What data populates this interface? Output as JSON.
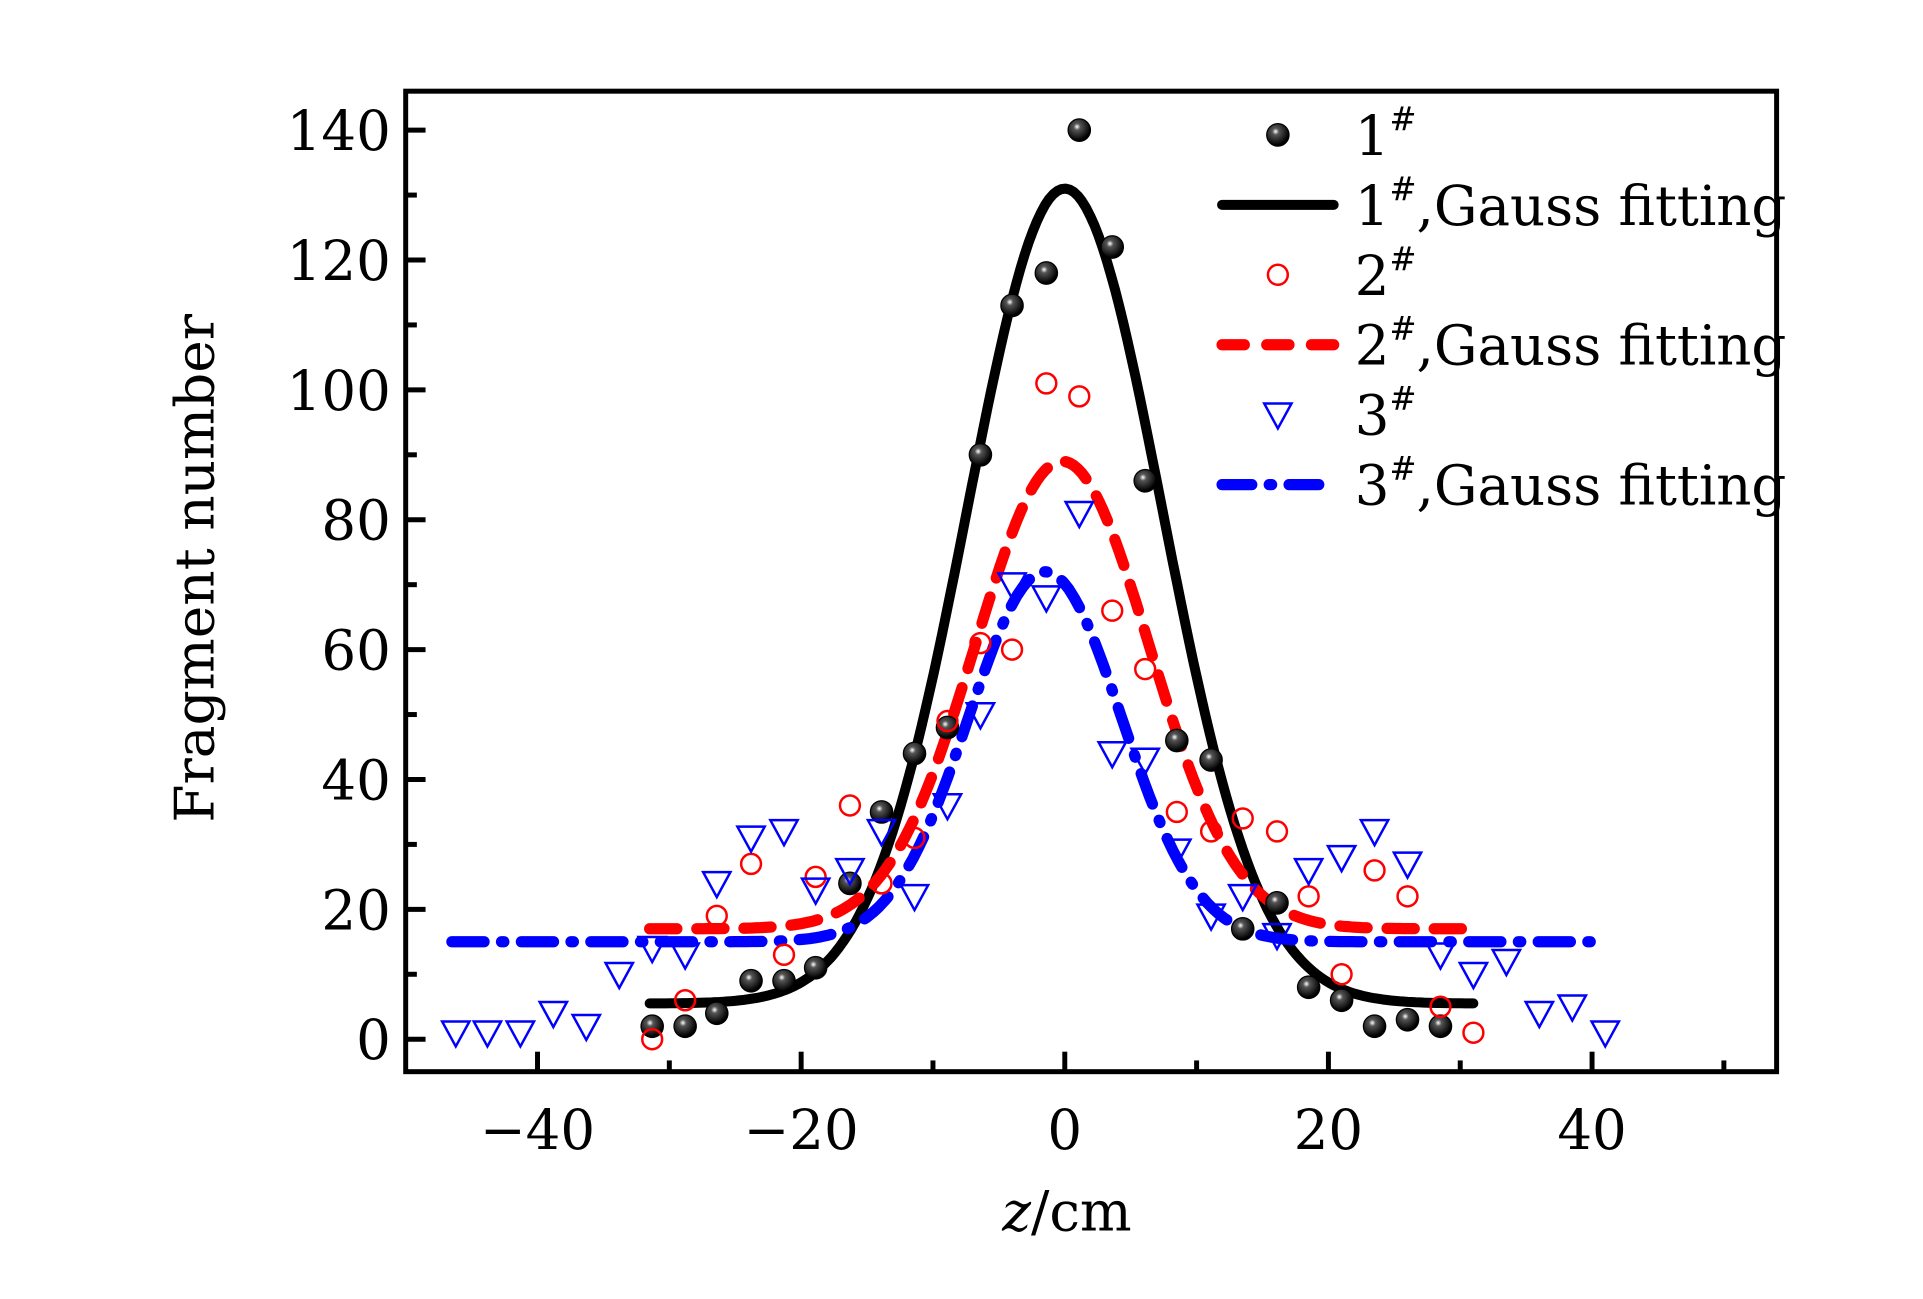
{
  "chart_data": {
    "type": "scatter",
    "title": "",
    "xlabel": "z/cm",
    "xlabel_italic_part": "z",
    "xlabel_rest": "/cm",
    "ylabel": "Fragment number",
    "xlim": [
      -50,
      54
    ],
    "ylim": [
      -5,
      146
    ],
    "x_ticks": [
      -40,
      -20,
      0,
      20,
      40
    ],
    "x_tick_labels": [
      "−40",
      "−20",
      "0",
      "20",
      "40"
    ],
    "x_minor_ticks": [
      -30,
      -10,
      10,
      30,
      50
    ],
    "y_ticks": [
      0,
      20,
      40,
      60,
      80,
      100,
      120,
      140
    ],
    "y_tick_labels": [
      "0",
      "20",
      "40",
      "60",
      "80",
      "100",
      "120",
      "140"
    ],
    "y_minor_ticks": [
      10,
      30,
      50,
      70,
      90,
      110,
      130
    ],
    "grid": false,
    "legend_position": "top-right",
    "series": [
      {
        "name": "1#",
        "legend_main": "1",
        "legend_sup": "#",
        "kind": "scatter",
        "marker": "filled-sphere",
        "color": "#000000",
        "x": [
          -31.3,
          -28.8,
          -26.4,
          -23.8,
          -21.3,
          -18.9,
          -16.3,
          -13.9,
          -11.4,
          -8.9,
          -6.4,
          -4.0,
          -1.4,
          1.1,
          3.6,
          6.1,
          8.5,
          11.1,
          13.5,
          16.1,
          18.5,
          21.0,
          23.5,
          26.0,
          28.5
        ],
        "y": [
          2,
          2,
          4,
          9,
          9,
          11,
          24,
          35,
          44,
          48,
          90,
          113,
          118,
          140,
          122,
          86,
          46,
          43,
          17,
          21,
          8,
          6,
          2,
          3,
          2
        ]
      },
      {
        "name": "1#, Gauss fitting",
        "legend_main": "1",
        "legend_sup": "#",
        "legend_rest": ",Gauss fitting",
        "kind": "gauss",
        "line_style": "solid",
        "color": "#000000",
        "params": {
          "y0": 5.5,
          "A": 125.5,
          "xc": 0,
          "sigma": 7.4
        },
        "x_range": [
          -31.5,
          31
        ]
      },
      {
        "name": "2#",
        "legend_main": "2",
        "legend_sup": "#",
        "kind": "scatter",
        "marker": "open-circle",
        "color": "#ff0000",
        "x": [
          -31.3,
          -28.8,
          -26.4,
          -23.8,
          -21.3,
          -18.9,
          -16.3,
          -13.9,
          -11.4,
          -8.9,
          -6.4,
          -4.0,
          -1.4,
          1.1,
          3.6,
          6.1,
          8.5,
          11.1,
          13.5,
          16.1,
          18.5,
          21.0,
          23.5,
          26.0,
          28.5,
          31.0
        ],
        "y": [
          0,
          6,
          19,
          27,
          13,
          25,
          36,
          24,
          31,
          49,
          61,
          60,
          101,
          99,
          66,
          57,
          35,
          32,
          34,
          32,
          22,
          10,
          26,
          22,
          5,
          1
        ]
      },
      {
        "name": "2#, Gauss fitting",
        "legend_main": "2",
        "legend_sup": "#",
        "legend_rest": ",Gauss fitting",
        "kind": "gauss",
        "line_style": "dashed",
        "color": "#ff0000",
        "params": {
          "y0": 17,
          "A": 72,
          "xc": -0.2,
          "sigma": 6.6
        },
        "x_range": [
          -31.5,
          31
        ]
      },
      {
        "name": "3#",
        "legend_main": "3",
        "legend_sup": "#",
        "kind": "scatter",
        "marker": "open-triangle-down",
        "color": "#0000ff",
        "x": [
          -46.2,
          -43.8,
          -41.3,
          -38.8,
          -36.3,
          -33.8,
          -31.3,
          -28.8,
          -26.4,
          -23.8,
          -21.3,
          -18.9,
          -16.3,
          -13.9,
          -11.4,
          -8.9,
          -6.4,
          -4.0,
          -1.4,
          1.1,
          3.6,
          6.1,
          8.5,
          11.1,
          13.5,
          16.1,
          18.5,
          21.0,
          23.5,
          26.0,
          28.5,
          31.0,
          33.5,
          36.0,
          38.5,
          41.0
        ],
        "y": [
          1,
          1,
          1,
          4,
          2,
          10,
          14,
          13,
          24,
          31,
          32,
          23,
          26,
          32,
          22,
          36,
          50,
          70,
          68,
          81,
          44,
          43,
          29,
          19,
          22,
          16,
          26,
          28,
          32,
          27,
          13,
          10,
          12,
          4,
          5,
          1
        ]
      },
      {
        "name": "3#, Gauss fitting",
        "legend_main": "3",
        "legend_sup": "#",
        "legend_rest": ",Gauss fitting",
        "kind": "gauss",
        "line_style": "dash-dot",
        "color": "#0000ff",
        "params": {
          "y0": 15,
          "A": 57,
          "xc": -1.5,
          "sigma": 5.8
        },
        "x_range": [
          -46.5,
          41
        ]
      }
    ]
  }
}
